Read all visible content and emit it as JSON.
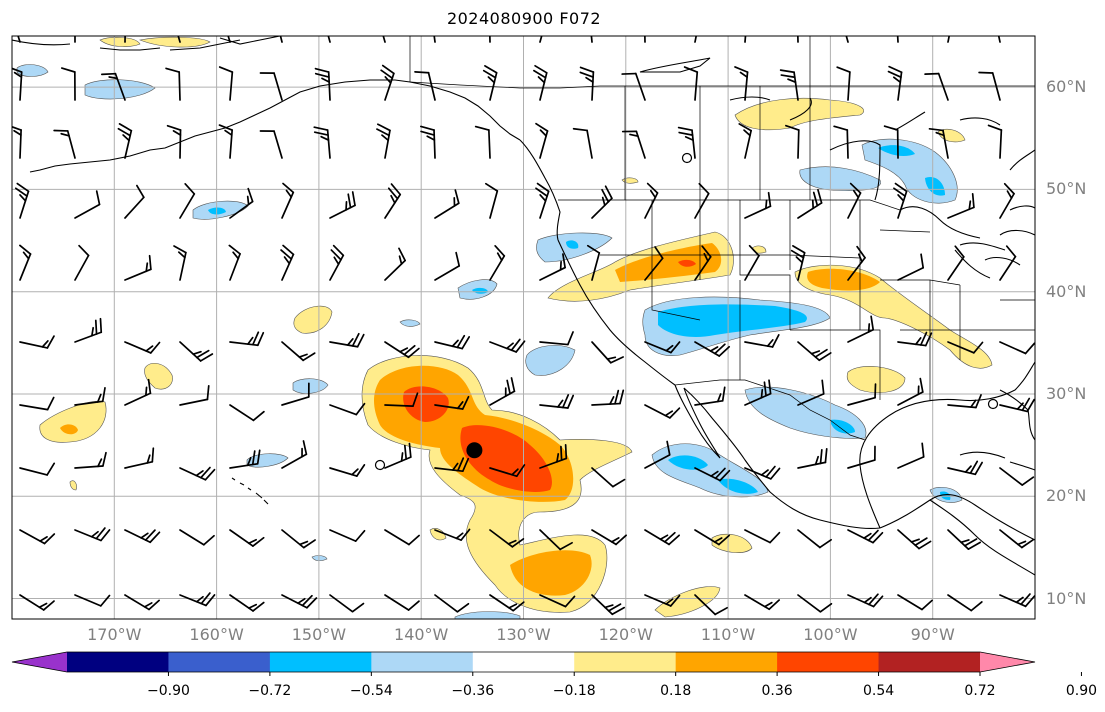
{
  "title": "2024080900 F072",
  "map": {
    "lon_range": [
      -180,
      -80
    ],
    "lat_range": [
      8,
      65
    ],
    "lat_labels": [
      {
        "lat": 60,
        "text": "60°N"
      },
      {
        "lat": 50,
        "text": "50°N"
      },
      {
        "lat": 40,
        "text": "40°N"
      },
      {
        "lat": 30,
        "text": "30°N"
      },
      {
        "lat": 20,
        "text": "20°N"
      },
      {
        "lat": 10,
        "text": "10°N"
      }
    ],
    "lon_labels": [
      {
        "lon": -170,
        "text": "170°W"
      },
      {
        "lon": -160,
        "text": "160°W"
      },
      {
        "lon": -150,
        "text": "150°W"
      },
      {
        "lon": -140,
        "text": "140°W"
      },
      {
        "lon": -130,
        "text": "130°W"
      },
      {
        "lon": -120,
        "text": "120°W"
      },
      {
        "lon": -110,
        "text": "110°W"
      },
      {
        "lon": -100,
        "text": "100°W"
      },
      {
        "lon": -90,
        "text": "90°W"
      }
    ],
    "grid": true,
    "storm_marker": {
      "lon": -134.8,
      "lat": 24.5
    }
  },
  "colorbar": {
    "colors": [
      "#9932cc",
      "#000080",
      "#3a5fcd",
      "#00bfff",
      "#add8f6",
      "#ffffff",
      "#ffec8b",
      "#ffa500",
      "#ff4500",
      "#b22222",
      "#ff88aa"
    ],
    "tick_labels": [
      "−0.90",
      "−0.72",
      "−0.54",
      "−0.36",
      "−0.18",
      "0.18",
      "0.36",
      "0.54",
      "0.72",
      "0.90"
    ]
  },
  "colors": {
    "coast": "#000000",
    "grid": "#b0b0b0",
    "label": "#808080"
  }
}
